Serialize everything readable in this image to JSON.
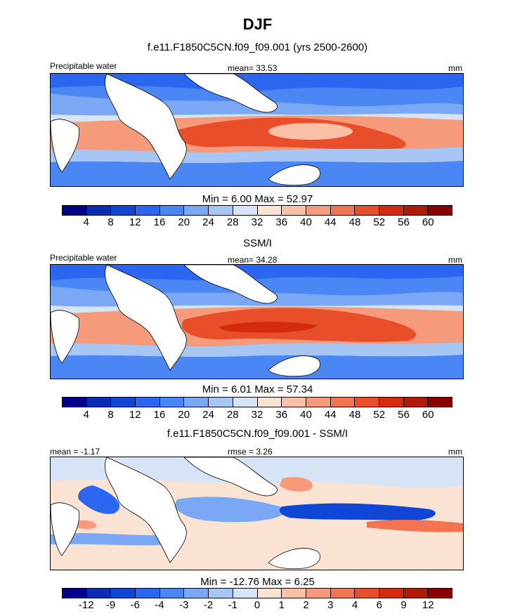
{
  "title": "DJF",
  "panels": [
    {
      "id": "model",
      "subtitle": "f.e11.F1850C5CN.f09_f09.001 (yrs 2500-2600)",
      "left_label": "Precipitable water",
      "center_label": "mean=  33.53",
      "right_label": "mm",
      "minmax": "Min =   6.00 Max =  52.97"
    },
    {
      "id": "obs",
      "subtitle": "SSM/I",
      "left_label": "Precipitable water",
      "center_label": "mean=  34.28",
      "right_label": "mm",
      "minmax": "Min =   6.01 Max =  57.34"
    },
    {
      "id": "diff",
      "subtitle": "f.e11.F1850C5CN.f09_f09.001 - SSM/I",
      "left_label": "mean =  -1.17",
      "center_label": "rmse =   3.26",
      "right_label": "mm",
      "minmax": "Min = -12.76 Max =   6.25"
    }
  ],
  "colors": {
    "levels16": [
      "#00008b",
      "#0a2db4",
      "#1046d6",
      "#2a66f0",
      "#4a86f4",
      "#7aa8f4",
      "#a8c6f4",
      "#d6e4f6",
      "#fbe3d4",
      "#f9c0a6",
      "#f59a7a",
      "#f07550",
      "#e84e2a",
      "#d42a10",
      "#b01a08",
      "#880000"
    ],
    "ocean_fill": "#4a86f4",
    "land_fill": "#ffffff"
  },
  "chart_data": [
    {
      "type": "heatmap",
      "panel": "model",
      "title": "f.e11.F1850C5CN.f09_f09.001 (yrs 2500-2600)",
      "variable": "Precipitable water",
      "units": "mm",
      "mean": 33.53,
      "min": 6.0,
      "max": 52.97,
      "colorbar_levels": [
        "4",
        "8",
        "12",
        "16",
        "20",
        "24",
        "28",
        "32",
        "36",
        "40",
        "44",
        "48",
        "52",
        "56",
        "60"
      ]
    },
    {
      "type": "heatmap",
      "panel": "obs",
      "title": "SSM/I",
      "variable": "Precipitable water",
      "units": "mm",
      "mean": 34.28,
      "min": 6.01,
      "max": 57.34,
      "colorbar_levels": [
        "4",
        "8",
        "12",
        "16",
        "20",
        "24",
        "28",
        "32",
        "36",
        "40",
        "44",
        "48",
        "52",
        "56",
        "60"
      ]
    },
    {
      "type": "heatmap",
      "panel": "diff",
      "title": "f.e11.F1850C5CN.f09_f09.001 - SSM/I",
      "units": "mm",
      "mean": -1.17,
      "rmse": 3.26,
      "min": -12.76,
      "max": 6.25,
      "colorbar_levels": [
        "-12",
        "-9",
        "-6",
        "-4",
        "-3",
        "-2",
        "-1",
        "0",
        "1",
        "2",
        "3",
        "4",
        "6",
        "9",
        "12"
      ]
    }
  ]
}
